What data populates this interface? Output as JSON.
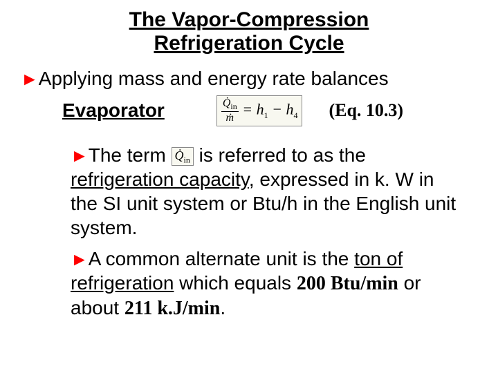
{
  "title_line1": "The Vapor-Compression",
  "title_line2": "Refrigeration Cycle",
  "bullet1_text": "Applying mass and energy rate balances",
  "evaporator_label": "Evaporator",
  "eq_lhs_num_sym": "Q̇",
  "eq_lhs_num_sub": "in",
  "eq_lhs_den_sym": "ṁ",
  "eq_rhs": " = h",
  "eq_h1_sub": "1",
  "eq_minus": " − h",
  "eq_h4_sub": "4",
  "eq_ref": "(Eq. 10.3)",
  "para1_pre": "The term ",
  "small_q_sym": "Q̇",
  "small_q_sub": "in",
  "para1_mid": " is referred to as the ",
  "para1_refcap": "refrigeration capacity",
  "para1_post": ", expressed in k. W in the SI unit system or Btu/h in the English unit system.",
  "para2_pre": "A common alternate unit is the ",
  "para2_ton": "ton of refrigeration",
  "para2_mid": " which equals ",
  "para2_val1": "200 Btu/min",
  "para2_or": " or about ",
  "para2_val2": "211 k.J/min",
  "para2_end": ".",
  "arrow_glyph": "►",
  "colors": {
    "arrow": "#ff0000",
    "text": "#000000",
    "bg": "#ffffff"
  }
}
